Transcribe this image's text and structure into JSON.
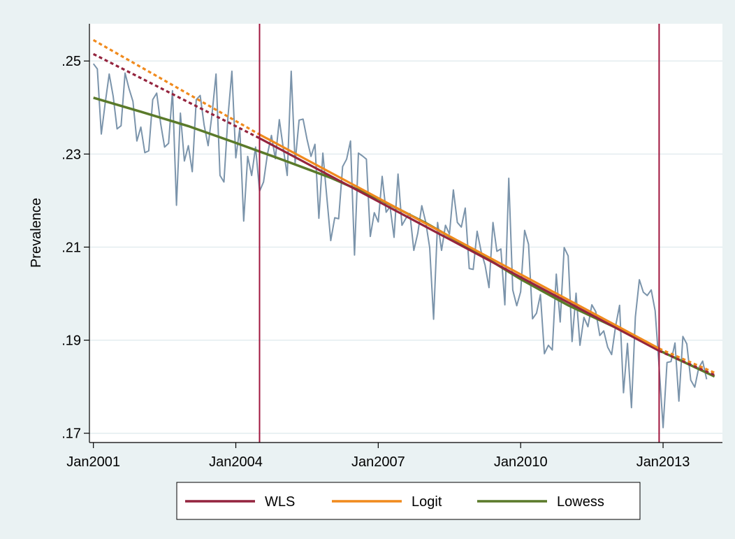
{
  "chart_data": {
    "type": "line",
    "ylabel": "Prevalence",
    "xlabel": "",
    "x_axis": {
      "kind": "date",
      "range": [
        "2000-12",
        "2014-04"
      ]
    },
    "ylim": [
      0.168,
      0.258
    ],
    "x_ticks": [
      {
        "date": "2001-01",
        "label": "Jan2001"
      },
      {
        "date": "2004-01",
        "label": "Jan2004"
      },
      {
        "date": "2007-01",
        "label": "Jan2007"
      },
      {
        "date": "2010-01",
        "label": "Jan2010"
      },
      {
        "date": "2013-01",
        "label": "Jan2013"
      }
    ],
    "y_ticks": [
      {
        "value": 0.17,
        "label": ".17"
      },
      {
        "value": 0.19,
        "label": ".19"
      },
      {
        "value": 0.21,
        "label": ".21"
      },
      {
        "value": 0.23,
        "label": ".23"
      },
      {
        "value": 0.25,
        "label": ".25"
      }
    ],
    "grid": "horizontal",
    "legend_position": "bottom",
    "reference_lines": [
      {
        "date": "2004-07",
        "color": "#a0163e"
      },
      {
        "date": "2012-12",
        "color": "#a0163e"
      }
    ],
    "observed": {
      "color": "#7b94ab",
      "dates": [
        "2001-01",
        "2001-02",
        "2001-03",
        "2001-04",
        "2001-05",
        "2001-06",
        "2001-07",
        "2001-08",
        "2001-09",
        "2001-10",
        "2001-11",
        "2001-12",
        "2002-01",
        "2002-02",
        "2002-03",
        "2002-04",
        "2002-05",
        "2002-06",
        "2002-07",
        "2002-08",
        "2002-09",
        "2002-10",
        "2002-11",
        "2002-12",
        "2003-01",
        "2003-02",
        "2003-03",
        "2003-04",
        "2003-05",
        "2003-06",
        "2003-07",
        "2003-08",
        "2003-09",
        "2003-10",
        "2003-11",
        "2003-12",
        "2004-01",
        "2004-02",
        "2004-03",
        "2004-04",
        "2004-05",
        "2004-06",
        "2004-07",
        "2004-08",
        "2004-09",
        "2004-10",
        "2004-11",
        "2004-12",
        "2005-01",
        "2005-02",
        "2005-03",
        "2005-04",
        "2005-05",
        "2005-06",
        "2005-07",
        "2005-08",
        "2005-09",
        "2005-10",
        "2005-11",
        "2005-12",
        "2006-01",
        "2006-02",
        "2006-03",
        "2006-04",
        "2006-05",
        "2006-06",
        "2006-07",
        "2006-08",
        "2006-09",
        "2006-10",
        "2006-11",
        "2006-12",
        "2007-01",
        "2007-02",
        "2007-03",
        "2007-04",
        "2007-05",
        "2007-06",
        "2007-07",
        "2007-08",
        "2007-09",
        "2007-10",
        "2007-11",
        "2007-12",
        "2008-01",
        "2008-02",
        "2008-03",
        "2008-04",
        "2008-05",
        "2008-06",
        "2008-07",
        "2008-08",
        "2008-09",
        "2008-10",
        "2008-11",
        "2008-12",
        "2009-01",
        "2009-02",
        "2009-03",
        "2009-04",
        "2009-05",
        "2009-06",
        "2009-07",
        "2009-08",
        "2009-09",
        "2009-10",
        "2009-11",
        "2009-12",
        "2010-01",
        "2010-02",
        "2010-03",
        "2010-04",
        "2010-05",
        "2010-06",
        "2010-07",
        "2010-08",
        "2010-09",
        "2010-10",
        "2010-11",
        "2010-12",
        "2011-01",
        "2011-02",
        "2011-03",
        "2011-04",
        "2011-05",
        "2011-06",
        "2011-07",
        "2011-08",
        "2011-09",
        "2011-10",
        "2011-11",
        "2011-12",
        "2012-01",
        "2012-02",
        "2012-03",
        "2012-04",
        "2012-05",
        "2012-06",
        "2012-07",
        "2012-08",
        "2012-09",
        "2012-10",
        "2012-11",
        "2012-12",
        "2013-01",
        "2013-02",
        "2013-03",
        "2013-04",
        "2013-05",
        "2013-06",
        "2013-07",
        "2013-08",
        "2013-09",
        "2013-10",
        "2013-11",
        "2013-12"
      ],
      "values": [
        0.2494,
        0.2483,
        0.2343,
        0.2411,
        0.2472,
        0.2424,
        0.2354,
        0.2361,
        0.2474,
        0.2441,
        0.2413,
        0.2328,
        0.2358,
        0.2303,
        0.2307,
        0.2417,
        0.2431,
        0.2366,
        0.2315,
        0.2323,
        0.2436,
        0.219,
        0.2388,
        0.2285,
        0.2318,
        0.2262,
        0.2417,
        0.2426,
        0.2362,
        0.2318,
        0.2386,
        0.2472,
        0.2254,
        0.224,
        0.2378,
        0.2478,
        0.2292,
        0.2355,
        0.2156,
        0.2295,
        0.2254,
        0.2315,
        0.222,
        0.224,
        0.23,
        0.234,
        0.229,
        0.2374,
        0.2312,
        0.2254,
        0.2478,
        0.2281,
        0.2373,
        0.2375,
        0.2332,
        0.2295,
        0.2321,
        0.2162,
        0.2302,
        0.2207,
        0.2114,
        0.2163,
        0.2161,
        0.2273,
        0.2289,
        0.2328,
        0.2083,
        0.2302,
        0.2296,
        0.2289,
        0.2123,
        0.2174,
        0.2154,
        0.2252,
        0.2175,
        0.2187,
        0.2121,
        0.2257,
        0.2147,
        0.2162,
        0.2172,
        0.2093,
        0.213,
        0.2189,
        0.2154,
        0.2099,
        0.1945,
        0.2153,
        0.2093,
        0.2147,
        0.2128,
        0.2223,
        0.2153,
        0.2143,
        0.2184,
        0.2054,
        0.2052,
        0.2134,
        0.2091,
        0.2061,
        0.2013,
        0.2153,
        0.2091,
        0.2096,
        0.1976,
        0.2248,
        0.2008,
        0.1974,
        0.2004,
        0.2136,
        0.2106,
        0.1946,
        0.1958,
        0.1998,
        0.1871,
        0.1889,
        0.1879,
        0.2042,
        0.1939,
        0.2099,
        0.2081,
        0.1897,
        0.2001,
        0.1889,
        0.1949,
        0.1929,
        0.1976,
        0.1961,
        0.191,
        0.192,
        0.1885,
        0.1869,
        0.193,
        0.1975,
        0.1787,
        0.1893,
        0.1755,
        0.195,
        0.203,
        0.2003,
        0.1996,
        0.2008,
        0.1963,
        0.1842,
        0.1712,
        0.1852,
        0.1854,
        0.1894,
        0.1769,
        0.1908,
        0.1892,
        0.1814,
        0.1799,
        0.184,
        0.1855,
        0.1816
      ]
    },
    "series": [
      {
        "name": "WLS",
        "color": "#94243e",
        "pre_segment": {
          "start": [
            "2001-01",
            0.2515
          ],
          "end": [
            "2004-07",
            0.2334
          ]
        },
        "fitted_segment": {
          "start": [
            "2004-07",
            0.2334
          ],
          "end": [
            "2012-12",
            0.1877
          ]
        },
        "post_segment": {
          "start": [
            "2012-12",
            0.1877
          ],
          "end": [
            "2014-02",
            0.1825
          ]
        }
      },
      {
        "name": "Logit",
        "color": "#f08a1d",
        "pre_segment": {
          "start": [
            "2001-01",
            0.2545
          ],
          "end": [
            "2004-07",
            0.2342
          ]
        },
        "fitted_segment": {
          "start": [
            "2004-07",
            0.2342
          ],
          "end": [
            "2012-12",
            0.1882
          ]
        },
        "post_segment": {
          "start": [
            "2012-12",
            0.1882
          ],
          "end": [
            "2014-02",
            0.183
          ]
        }
      },
      {
        "name": "Lowess",
        "color": "#5a7a2a",
        "points": [
          [
            "2001-01",
            0.2421
          ],
          [
            "2002-01",
            0.2391
          ],
          [
            "2003-01",
            0.236
          ],
          [
            "2004-01",
            0.2324
          ],
          [
            "2005-01",
            0.2287
          ],
          [
            "2006-01",
            0.2249
          ],
          [
            "2007-01",
            0.2204
          ],
          [
            "2008-01",
            0.2152
          ],
          [
            "2009-01",
            0.2094
          ],
          [
            "2010-01",
            0.2031
          ],
          [
            "2011-01",
            0.1975
          ],
          [
            "2012-01",
            0.1927
          ],
          [
            "2012-12",
            0.1878
          ],
          [
            "2014-02",
            0.1822
          ]
        ]
      }
    ]
  }
}
